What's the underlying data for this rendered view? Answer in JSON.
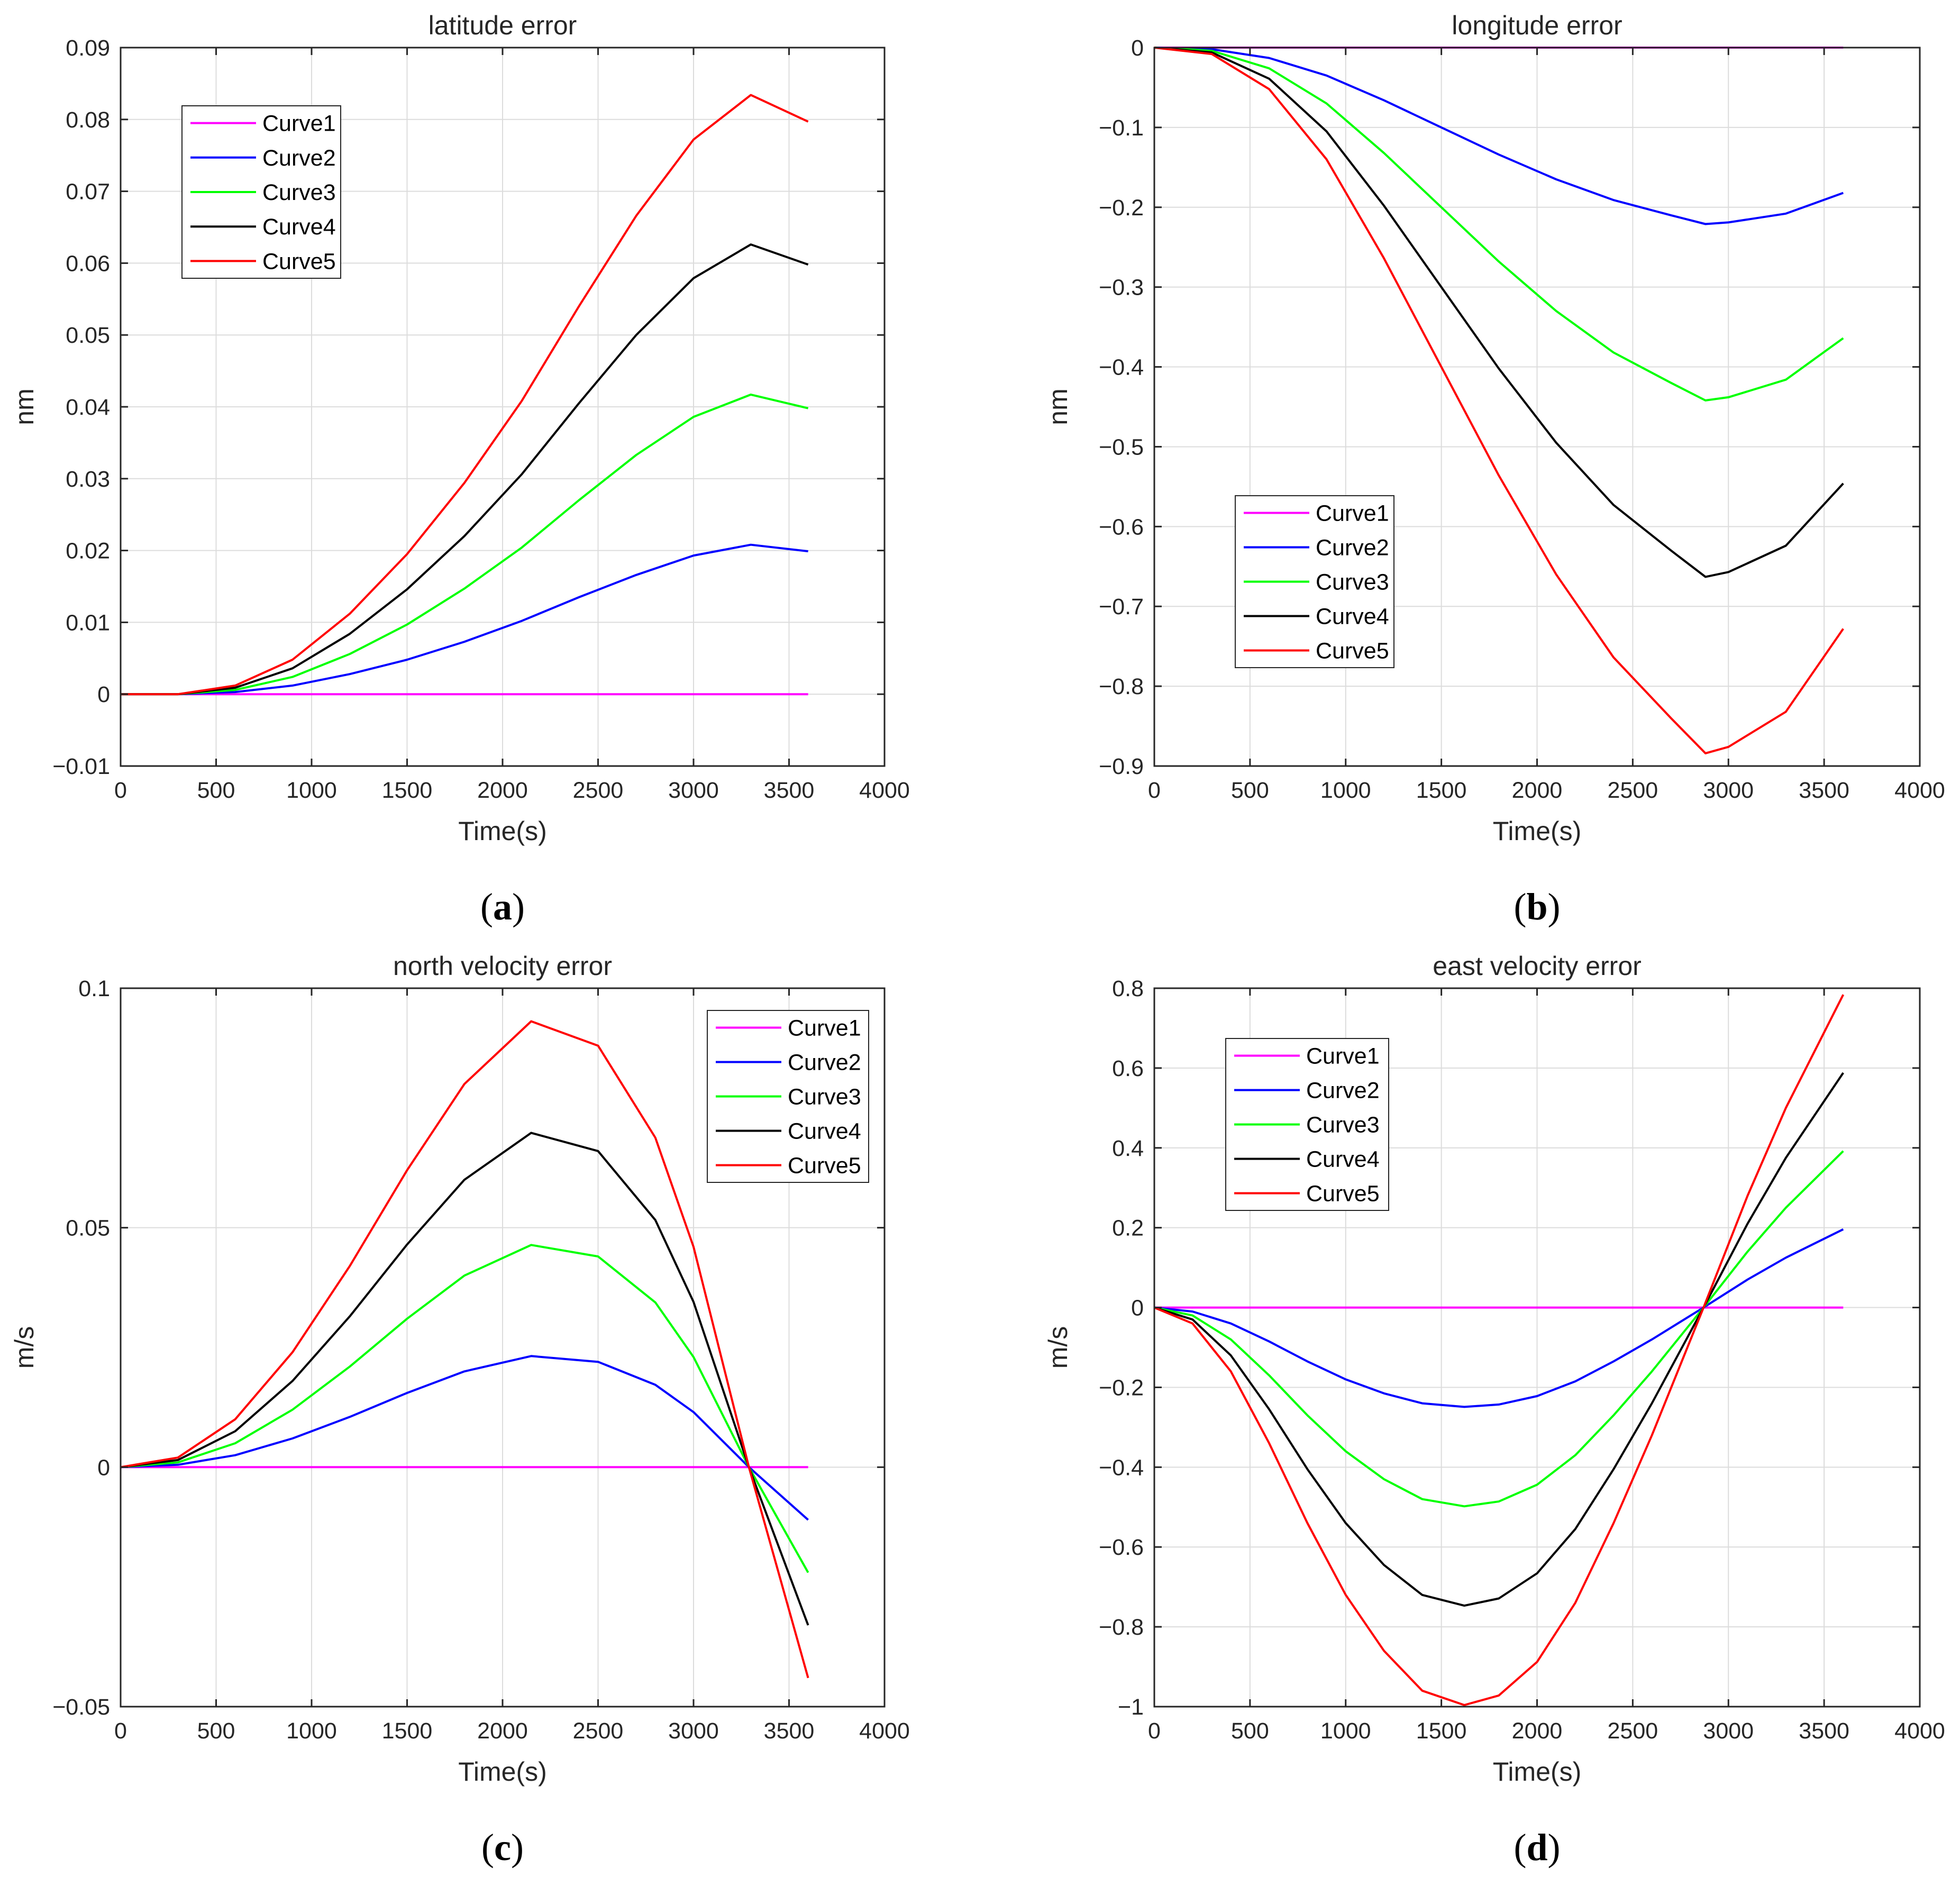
{
  "chart_data": [
    {
      "type": "line",
      "caption_letter": "a",
      "title": "latitude error",
      "xlabel": "Time(s)",
      "ylabel": "nm",
      "xlim": [
        0,
        4000
      ],
      "ylim": [
        -0.01,
        0.09
      ],
      "x_ticks": [
        0,
        500,
        1000,
        1500,
        2000,
        2500,
        3000,
        3500,
        4000
      ],
      "y_ticks": [
        -0.01,
        0,
        0.01,
        0.02,
        0.03,
        0.04,
        0.05,
        0.06,
        0.07,
        0.08,
        0.09
      ],
      "y_tick_labels": [
        "−0.01",
        "0",
        "0.01",
        "0.02",
        "0.03",
        "0.04",
        "0.05",
        "0.06",
        "0.07",
        "0.08",
        "0.09"
      ],
      "grid": true,
      "legend_position": "top-left",
      "series": [
        {
          "name": "Curve1",
          "color": "#ff00ff",
          "x": [
            0,
            600,
            1200,
            1800,
            2400,
            3000,
            3600
          ],
          "y": [
            0,
            0,
            0,
            0,
            0,
            0,
            0
          ]
        },
        {
          "name": "Curve2",
          "color": "#0000ff",
          "x": [
            0,
            300,
            600,
            900,
            1200,
            1500,
            1800,
            2100,
            2400,
            2700,
            3000,
            3300,
            3600
          ],
          "y": [
            0,
            0,
            0.0003,
            0.0012,
            0.0028,
            0.0048,
            0.0073,
            0.0102,
            0.0135,
            0.0166,
            0.0193,
            0.0208,
            0.0199
          ]
        },
        {
          "name": "Curve3",
          "color": "#00ff00",
          "x": [
            0,
            300,
            600,
            900,
            1200,
            1500,
            1800,
            2100,
            2400,
            2700,
            3000,
            3300,
            3600
          ],
          "y": [
            0,
            0,
            0.0006,
            0.0024,
            0.0056,
            0.0097,
            0.0147,
            0.0204,
            0.027,
            0.0333,
            0.0386,
            0.0417,
            0.0398
          ]
        },
        {
          "name": "Curve4",
          "color": "#000000",
          "x": [
            0,
            300,
            600,
            900,
            1200,
            1500,
            1800,
            2100,
            2400,
            2700,
            3000,
            3300,
            3600
          ],
          "y": [
            0,
            0,
            0.0009,
            0.0036,
            0.0084,
            0.0146,
            0.022,
            0.0306,
            0.0405,
            0.05,
            0.0579,
            0.0626,
            0.0598
          ]
        },
        {
          "name": "Curve5",
          "color": "#ff0000",
          "x": [
            0,
            300,
            600,
            900,
            1200,
            1500,
            1800,
            2100,
            2400,
            2700,
            3000,
            3300,
            3600
          ],
          "y": [
            0,
            0,
            0.0012,
            0.0048,
            0.0112,
            0.0195,
            0.0294,
            0.0408,
            0.054,
            0.0666,
            0.0772,
            0.0834,
            0.0797
          ]
        }
      ]
    },
    {
      "type": "line",
      "caption_letter": "b",
      "title": "longitude error",
      "xlabel": "Time(s)",
      "ylabel": "nm",
      "xlim": [
        0,
        4000
      ],
      "ylim": [
        -0.9,
        0
      ],
      "x_ticks": [
        0,
        500,
        1000,
        1500,
        2000,
        2500,
        3000,
        3500,
        4000
      ],
      "y_ticks": [
        -0.9,
        -0.8,
        -0.7,
        -0.6,
        -0.5,
        -0.4,
        -0.3,
        -0.2,
        -0.1,
        0
      ],
      "y_tick_labels": [
        "−0.9",
        "−0.8",
        "−0.7",
        "−0.6",
        "−0.5",
        "−0.4",
        "−0.3",
        "−0.2",
        "−0.1",
        "0"
      ],
      "grid": true,
      "legend_position": "bottom-left",
      "series": [
        {
          "name": "Curve1",
          "color": "#ff00ff",
          "x": [
            0,
            600,
            1200,
            1800,
            2400,
            3000,
            3600
          ],
          "y": [
            0,
            0,
            0,
            0,
            0,
            0,
            0
          ]
        },
        {
          "name": "Curve2",
          "color": "#0000ff",
          "x": [
            0,
            300,
            600,
            900,
            1200,
            1500,
            1800,
            2100,
            2400,
            2700,
            2880,
            3000,
            3300,
            3600
          ],
          "y": [
            0,
            -0.002,
            -0.013,
            -0.035,
            -0.066,
            -0.1,
            -0.134,
            -0.165,
            -0.191,
            -0.21,
            -0.221,
            -0.219,
            -0.208,
            -0.182
          ]
        },
        {
          "name": "Curve3",
          "color": "#00ff00",
          "x": [
            0,
            300,
            600,
            900,
            1200,
            1500,
            1800,
            2100,
            2400,
            2700,
            2880,
            3000,
            3300,
            3600
          ],
          "y": [
            0,
            -0.004,
            -0.026,
            -0.07,
            -0.132,
            -0.2,
            -0.268,
            -0.33,
            -0.382,
            -0.42,
            -0.442,
            -0.438,
            -0.416,
            -0.364
          ]
        },
        {
          "name": "Curve4",
          "color": "#000000",
          "x": [
            0,
            300,
            600,
            900,
            1200,
            1500,
            1800,
            2100,
            2400,
            2700,
            2880,
            3000,
            3300,
            3600
          ],
          "y": [
            0,
            -0.006,
            -0.039,
            -0.105,
            -0.198,
            -0.3,
            -0.402,
            -0.495,
            -0.573,
            -0.63,
            -0.663,
            -0.657,
            -0.624,
            -0.546
          ]
        },
        {
          "name": "Curve5",
          "color": "#ff0000",
          "x": [
            0,
            300,
            600,
            900,
            1200,
            1500,
            1800,
            2100,
            2400,
            2700,
            2880,
            3000,
            3300,
            3600
          ],
          "y": [
            0,
            -0.008,
            -0.052,
            -0.14,
            -0.264,
            -0.4,
            -0.536,
            -0.66,
            -0.764,
            -0.84,
            -0.884,
            -0.876,
            -0.832,
            -0.728
          ]
        }
      ]
    },
    {
      "type": "line",
      "caption_letter": "c",
      "title": "north velocity error",
      "xlabel": "Time(s)",
      "ylabel": "m/s",
      "xlim": [
        0,
        4000
      ],
      "ylim": [
        -0.05,
        0.1
      ],
      "x_ticks": [
        0,
        500,
        1000,
        1500,
        2000,
        2500,
        3000,
        3500,
        4000
      ],
      "y_ticks": [
        -0.05,
        0,
        0.05,
        0.1
      ],
      "y_tick_labels": [
        "−0.05",
        "0",
        "0.05",
        "0.1"
      ],
      "grid": true,
      "legend_position": "top-right",
      "series": [
        {
          "name": "Curve1",
          "color": "#ff00ff",
          "x": [
            0,
            600,
            1200,
            1800,
            2400,
            3000,
            3600
          ],
          "y": [
            0,
            0,
            0,
            0,
            0,
            0,
            0
          ]
        },
        {
          "name": "Curve2",
          "color": "#0000ff",
          "x": [
            0,
            300,
            600,
            900,
            1200,
            1500,
            1800,
            2150,
            2500,
            2800,
            3000,
            3290,
            3600
          ],
          "y": [
            0,
            0.0005,
            0.0025,
            0.006,
            0.0105,
            0.0155,
            0.02,
            0.0232,
            0.022,
            0.0172,
            0.0115,
            0,
            -0.011
          ]
        },
        {
          "name": "Curve3",
          "color": "#00ff00",
          "x": [
            0,
            300,
            600,
            900,
            1200,
            1500,
            1800,
            2150,
            2500,
            2800,
            3000,
            3290,
            3600
          ],
          "y": [
            0,
            0.001,
            0.005,
            0.012,
            0.021,
            0.031,
            0.04,
            0.0464,
            0.044,
            0.0344,
            0.023,
            0,
            -0.022
          ]
        },
        {
          "name": "Curve4",
          "color": "#000000",
          "x": [
            0,
            300,
            600,
            900,
            1200,
            1500,
            1800,
            2150,
            2500,
            2800,
            3000,
            3290,
            3600
          ],
          "y": [
            0,
            0.0015,
            0.0075,
            0.018,
            0.0315,
            0.0465,
            0.06,
            0.0698,
            0.066,
            0.0516,
            0.0345,
            0,
            -0.033
          ]
        },
        {
          "name": "Curve5",
          "color": "#ff0000",
          "x": [
            0,
            300,
            600,
            900,
            1200,
            1500,
            1800,
            2150,
            2500,
            2800,
            3000,
            3290,
            3600
          ],
          "y": [
            0,
            0.002,
            0.01,
            0.024,
            0.042,
            0.062,
            0.08,
            0.0931,
            0.088,
            0.0688,
            0.046,
            0,
            -0.044
          ]
        }
      ]
    },
    {
      "type": "line",
      "caption_letter": "d",
      "title": "east velocity error",
      "xlabel": "Time(s)",
      "ylabel": "m/s",
      "xlim": [
        0,
        4000
      ],
      "ylim": [
        -1,
        0.8
      ],
      "x_ticks": [
        0,
        500,
        1000,
        1500,
        2000,
        2500,
        3000,
        3500,
        4000
      ],
      "y_ticks": [
        -1,
        -0.8,
        -0.6,
        -0.4,
        -0.2,
        0,
        0.2,
        0.4,
        0.6,
        0.8
      ],
      "y_tick_labels": [
        "−1",
        "−0.8",
        "−0.6",
        "−0.4",
        "−0.2",
        "0",
        "0.2",
        "0.4",
        "0.6",
        "0.8"
      ],
      "grid": true,
      "legend_position": "top-left",
      "series": [
        {
          "name": "Curve1",
          "color": "#ff00ff",
          "x": [
            0,
            600,
            1200,
            1800,
            2400,
            3000,
            3600
          ],
          "y": [
            0,
            0,
            0,
            0,
            0,
            0,
            0
          ]
        },
        {
          "name": "Curve2",
          "color": "#0000ff",
          "x": [
            0,
            200,
            400,
            600,
            800,
            1000,
            1200,
            1400,
            1620,
            1800,
            2000,
            2200,
            2400,
            2600,
            2870,
            3100,
            3300,
            3600
          ],
          "y": [
            0,
            -0.01,
            -0.04,
            -0.085,
            -0.135,
            -0.18,
            -0.215,
            -0.24,
            -0.249,
            -0.243,
            -0.222,
            -0.185,
            -0.135,
            -0.08,
            0,
            0.07,
            0.125,
            0.196
          ]
        },
        {
          "name": "Curve3",
          "color": "#00ff00",
          "x": [
            0,
            200,
            400,
            600,
            800,
            1000,
            1200,
            1400,
            1620,
            1800,
            2000,
            2200,
            2400,
            2600,
            2870,
            3100,
            3300,
            3600
          ],
          "y": [
            0,
            -0.02,
            -0.08,
            -0.17,
            -0.27,
            -0.36,
            -0.43,
            -0.48,
            -0.498,
            -0.486,
            -0.444,
            -0.37,
            -0.27,
            -0.16,
            0,
            0.14,
            0.25,
            0.392
          ]
        },
        {
          "name": "Curve4",
          "color": "#000000",
          "x": [
            0,
            200,
            400,
            600,
            800,
            1000,
            1200,
            1400,
            1620,
            1800,
            2000,
            2200,
            2400,
            2600,
            2870,
            3100,
            3300,
            3600
          ],
          "y": [
            0,
            -0.03,
            -0.12,
            -0.255,
            -0.405,
            -0.54,
            -0.645,
            -0.72,
            -0.747,
            -0.729,
            -0.666,
            -0.555,
            -0.405,
            -0.24,
            0,
            0.21,
            0.375,
            0.588
          ]
        },
        {
          "name": "Curve5",
          "color": "#ff0000",
          "x": [
            0,
            200,
            400,
            600,
            800,
            1000,
            1200,
            1400,
            1620,
            1800,
            2000,
            2200,
            2400,
            2600,
            2870,
            3100,
            3300,
            3600
          ],
          "y": [
            0,
            -0.04,
            -0.16,
            -0.34,
            -0.54,
            -0.72,
            -0.86,
            -0.96,
            -0.996,
            -0.972,
            -0.888,
            -0.74,
            -0.54,
            -0.32,
            0,
            0.28,
            0.5,
            0.784
          ]
        }
      ]
    }
  ]
}
